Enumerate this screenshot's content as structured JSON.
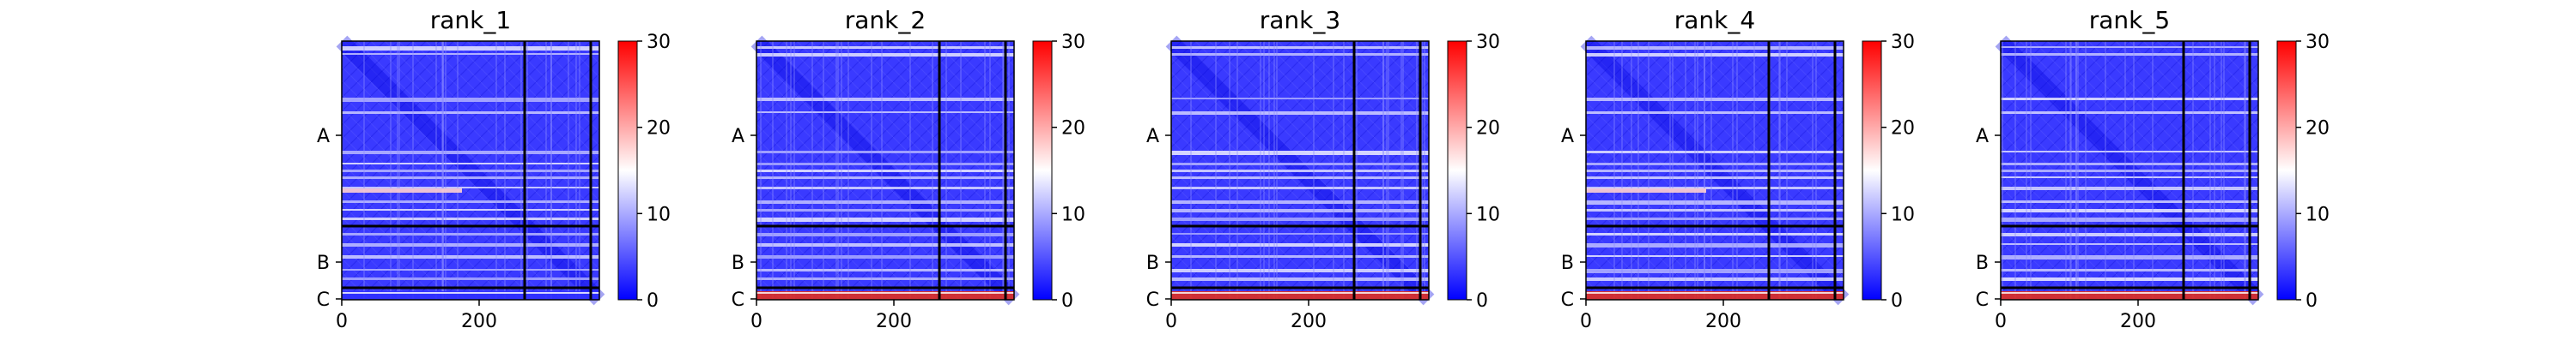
{
  "chart_data": [
    {
      "type": "heatmap",
      "title": "rank_1",
      "x_ticks": [
        "0",
        "200"
      ],
      "y_chain_labels": [
        "A",
        "B",
        "C"
      ],
      "colorbar": {
        "min": 0,
        "max": 30,
        "ticks": [
          "0",
          "10",
          "20",
          "30"
        ],
        "colors": [
          "#0000ff",
          "#ffffff",
          "#ff0000"
        ]
      },
      "chain_C_band": "blue"
    },
    {
      "type": "heatmap",
      "title": "rank_2",
      "x_ticks": [
        "0",
        "200"
      ],
      "y_chain_labels": [
        "A",
        "B",
        "C"
      ],
      "colorbar": {
        "min": 0,
        "max": 30,
        "ticks": [
          "0",
          "10",
          "20",
          "30"
        ],
        "colors": [
          "#0000ff",
          "#ffffff",
          "#ff0000"
        ]
      },
      "chain_C_band": "red"
    },
    {
      "type": "heatmap",
      "title": "rank_3",
      "x_ticks": [
        "0",
        "200"
      ],
      "y_chain_labels": [
        "A",
        "B",
        "C"
      ],
      "colorbar": {
        "min": 0,
        "max": 30,
        "ticks": [
          "0",
          "10",
          "20",
          "30"
        ],
        "colors": [
          "#0000ff",
          "#ffffff",
          "#ff0000"
        ]
      },
      "chain_C_band": "red"
    },
    {
      "type": "heatmap",
      "title": "rank_4",
      "x_ticks": [
        "0",
        "200"
      ],
      "y_chain_labels": [
        "A",
        "B",
        "C"
      ],
      "colorbar": {
        "min": 0,
        "max": 30,
        "ticks": [
          "0",
          "10",
          "20",
          "30"
        ],
        "colors": [
          "#0000ff",
          "#ffffff",
          "#ff0000"
        ]
      },
      "chain_C_band": "red"
    },
    {
      "type": "heatmap",
      "title": "rank_5",
      "x_ticks": [
        "0",
        "200"
      ],
      "y_chain_labels": [
        "A",
        "B",
        "C"
      ],
      "colorbar": {
        "min": 0,
        "max": 30,
        "ticks": [
          "0",
          "10",
          "20",
          "30"
        ],
        "colors": [
          "#0000ff",
          "#ffffff",
          "#ff0000"
        ]
      },
      "chain_C_band": "red"
    }
  ]
}
